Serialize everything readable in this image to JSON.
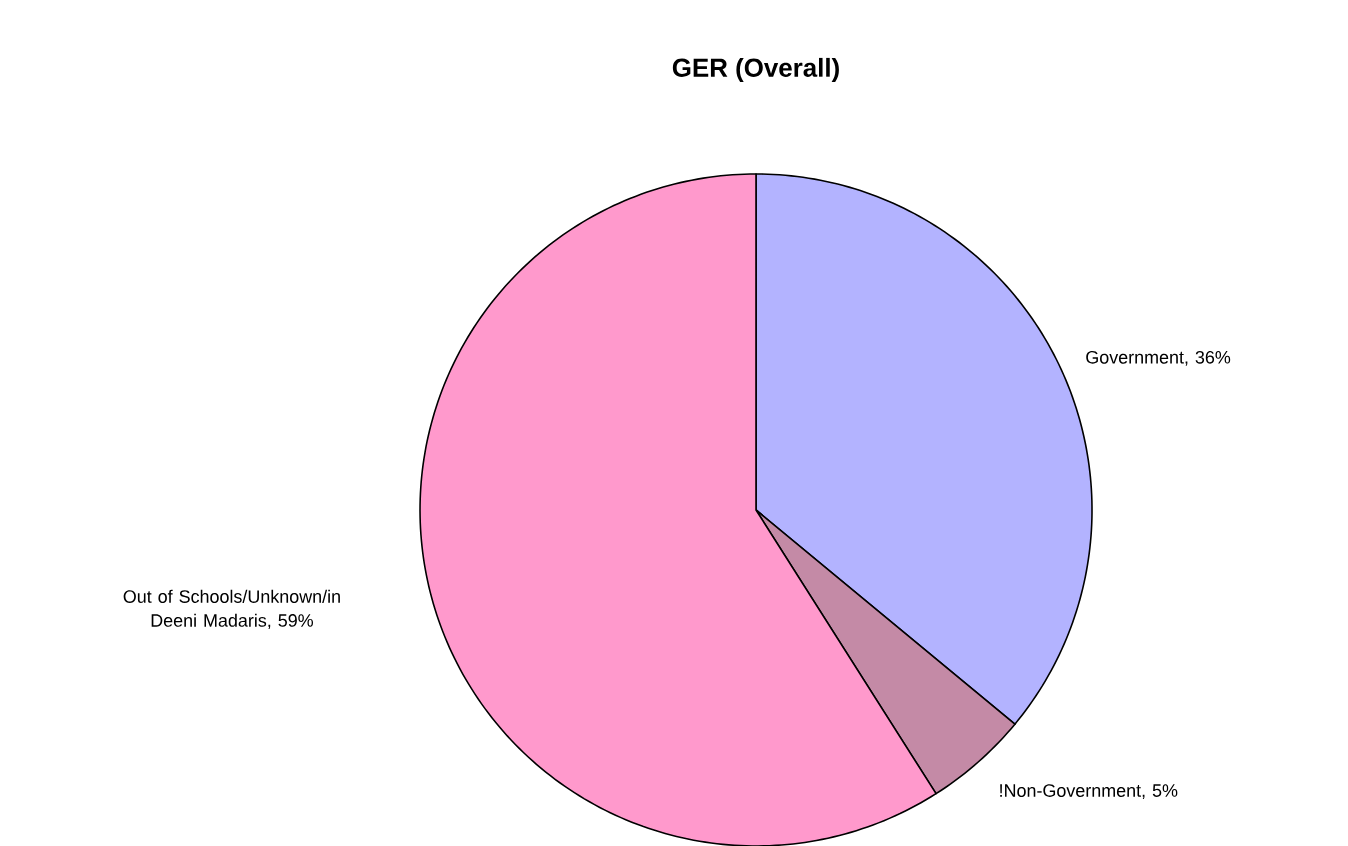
{
  "chart_data": {
    "type": "pie",
    "title": "GER (Overall)",
    "categories": [
      "Government, 36%",
      "!Non-Government, 5%",
      "Out of Schools/Unknown/in Deeni Madaris, 59%"
    ],
    "values": [
      36,
      5,
      59
    ],
    "colors": [
      "#b3b3ff",
      "#c48aa6",
      "#ff99cc"
    ]
  }
}
